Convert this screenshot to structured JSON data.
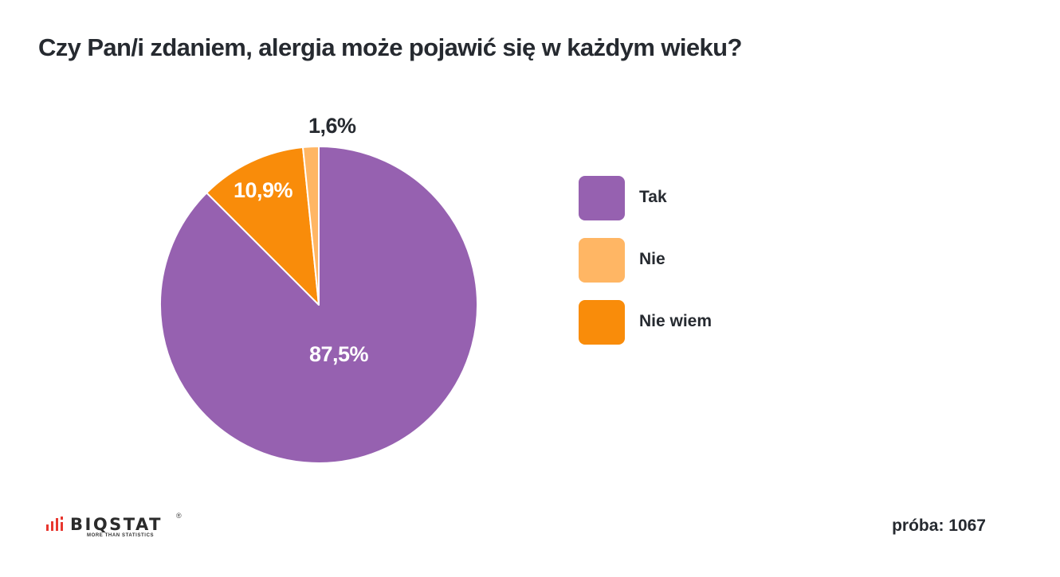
{
  "title": "Czy Pan/i zdaniem, alergia może pojawić się w każdym wieku?",
  "chart_data": {
    "type": "pie",
    "title": "Czy Pan/i zdaniem, alergia może pojawić się w każdym wieku?",
    "categories": [
      "Tak",
      "Nie",
      "Nie wiem"
    ],
    "values": [
      87.5,
      1.6,
      10.9
    ],
    "unit": "%",
    "colors": [
      "#9661b0",
      "#ffb664",
      "#f98c0a"
    ],
    "data_labels": [
      "87,5%",
      "1,6%",
      "10,9%"
    ],
    "start_angle": "12 o'clock, clockwise (Tak, then Nie wiem, then Nie)",
    "legend_position": "right"
  },
  "labels": {
    "tak": "87,5%",
    "nie": "1,6%",
    "nie_wiem": "10,9%"
  },
  "legend": {
    "items": [
      {
        "label": "Tak",
        "color": "#9661b0"
      },
      {
        "label": "Nie",
        "color": "#ffb664"
      },
      {
        "label": "Nie wiem",
        "color": "#f98c0a"
      }
    ]
  },
  "footer": {
    "logo_text": "BIQSTAT",
    "logo_reg": "®",
    "logo_tagline": "MORE THAN STATISTICS",
    "sample": "próba: 1067"
  }
}
